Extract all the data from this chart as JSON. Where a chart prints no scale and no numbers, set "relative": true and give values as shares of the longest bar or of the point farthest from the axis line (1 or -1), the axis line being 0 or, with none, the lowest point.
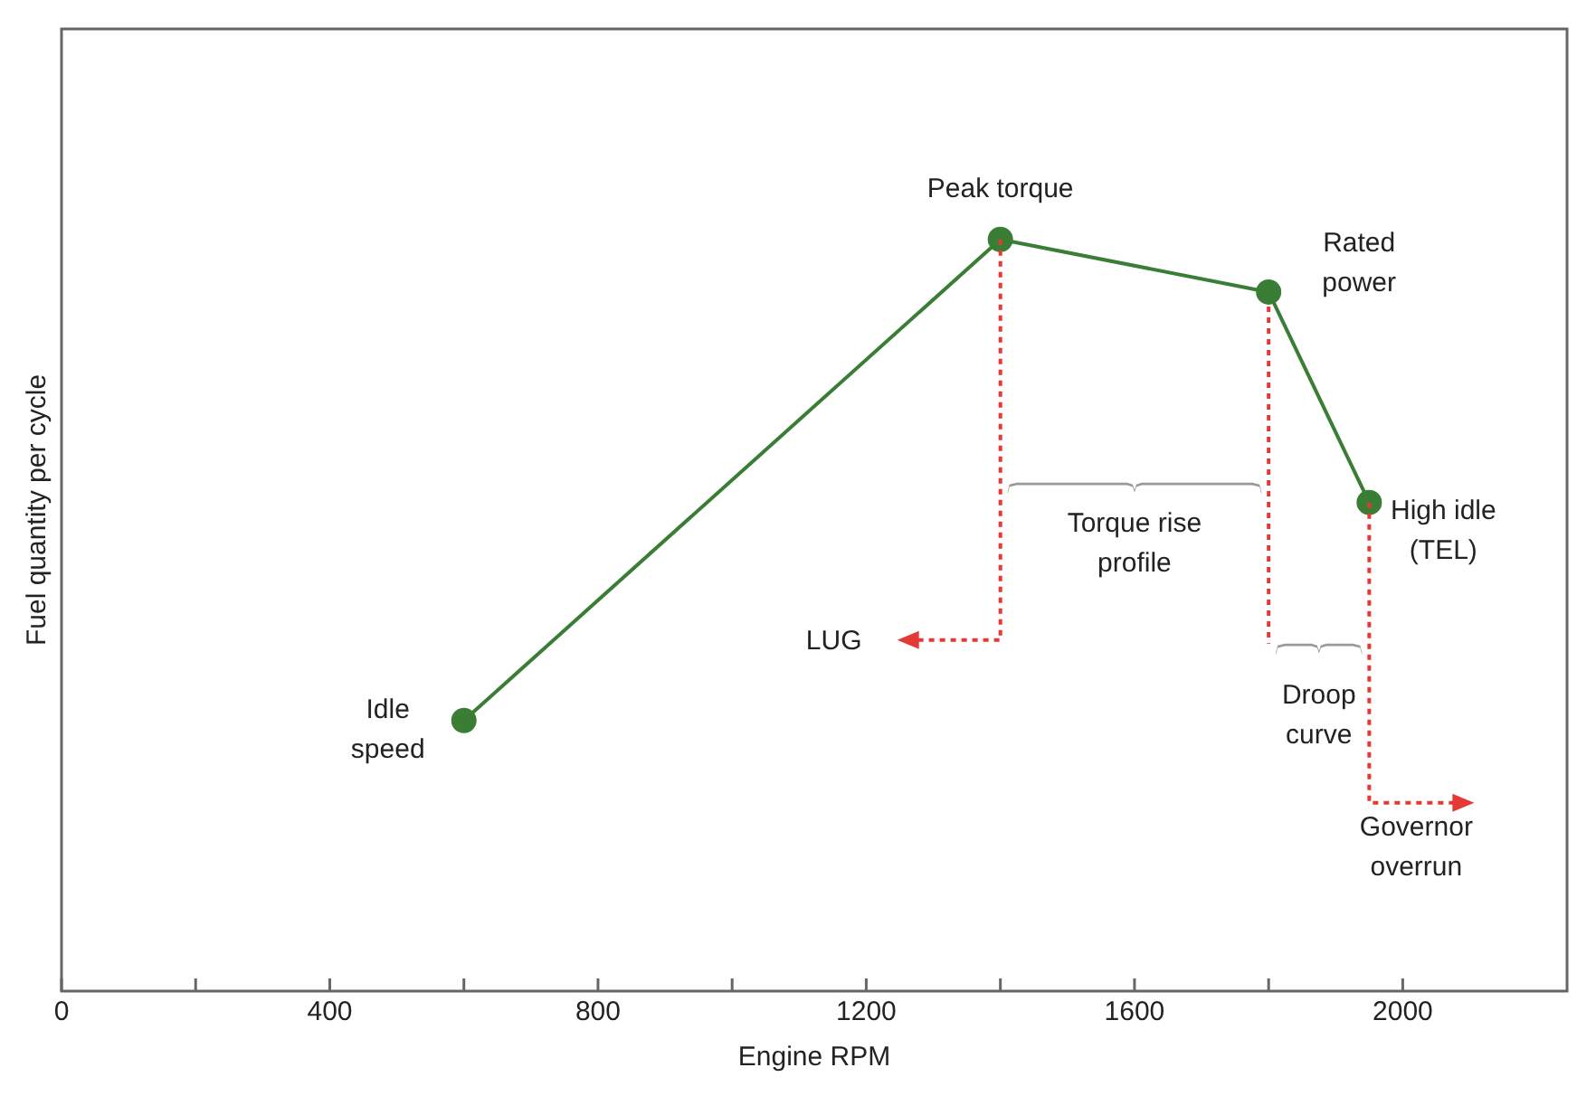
{
  "chart_data": {
    "type": "line",
    "relative": true,
    "xlabel": "Engine RPM",
    "ylabel": "Fuel quantity per cycle",
    "xlim": [
      0,
      2245
    ],
    "xticks": [
      0,
      {
        "value": 200,
        "label": null
      },
      400,
      {
        "value": 600,
        "label": null
      },
      800,
      {
        "value": 1000,
        "label": null
      },
      1200,
      {
        "value": 1400,
        "label": null
      },
      1600,
      {
        "value": 1800,
        "label": null
      },
      2000
    ],
    "marker": "circle",
    "grid": false,
    "legend": false,
    "series": [
      {
        "color": "#3a7d35",
        "x": [
          600,
          1400,
          1800,
          1950
        ],
        "values": [
          0.36,
          1,
          0.93,
          0.65
        ]
      }
    ],
    "annotations": [
      {
        "text": "Peak torque",
        "x": 1400,
        "y": 1
      },
      {
        "text": "Rated power",
        "x": 1800,
        "y": 0.93
      },
      {
        "text": "High idle (TEL)",
        "x": 1950,
        "y": 0.65
      },
      {
        "text": "Idle speed",
        "x": 600,
        "y": 0.36
      },
      "Torque rise profile",
      "LUG",
      "Droop curve",
      "Governor overrun"
    ]
  }
}
